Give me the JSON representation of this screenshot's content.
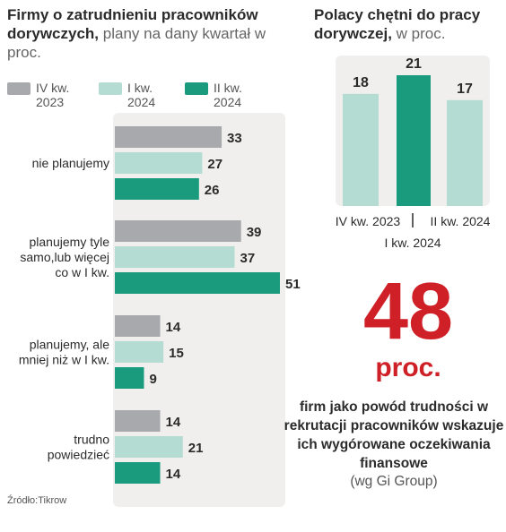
{
  "left_title": {
    "bold": "Firmy o zatrudnieniu pracowników dorywczych,",
    "rest": " plany na dany kwartał w proc."
  },
  "right_title": {
    "bold": "Polacy chętni do pracy dorywczej,",
    "rest": " w proc."
  },
  "legend": [
    {
      "label": "IV kw.\n2023",
      "color": "#a7a9ac"
    },
    {
      "label": "I kw.\n2024",
      "color": "#b4dcd3"
    },
    {
      "label": "II kw.\n2024",
      "color": "#1a9b7d"
    }
  ],
  "chart_data": [
    {
      "type": "bar",
      "orientation": "horizontal",
      "categories": [
        "nie planujemy",
        "planujemy tyle samo,lub więcej co w I kw.",
        "planujemy, ale mniej niż w I kw.",
        "trudno powiedzieć"
      ],
      "category_lines": [
        [
          "nie planujemy"
        ],
        [
          "planujemy tyle",
          "samo,lub więcej",
          "co w I kw."
        ],
        [
          "planujemy, ale",
          "mniej niż w I kw."
        ],
        [
          "trudno",
          "powiedzieć"
        ]
      ],
      "series": [
        {
          "name": "IV kw. 2023",
          "color": "#a7a9ac",
          "values": [
            33,
            39,
            14,
            14
          ]
        },
        {
          "name": "I kw. 2024",
          "color": "#b4dcd3",
          "values": [
            27,
            37,
            15,
            21
          ]
        },
        {
          "name": "II kw. 2024",
          "color": "#1a9b7d",
          "values": [
            26,
            51,
            9,
            14
          ]
        }
      ],
      "xlim": [
        0,
        51
      ]
    },
    {
      "type": "bar",
      "categories": [
        "IV kw. 2023",
        "I kw. 2024",
        "II kw. 2024"
      ],
      "values": [
        18,
        21,
        17
      ],
      "colors": [
        "#b4dcd3",
        "#1a9b7d",
        "#b4dcd3"
      ],
      "ylim": [
        0,
        21
      ]
    }
  ],
  "highlight": {
    "value": "48",
    "unit": "proc.",
    "description": "firm jako powód trudności w rekrutacji pracowników wskazuje ich wygórowane oczekiwania finansowe",
    "source": "(wg Gi Group)"
  },
  "source_note": "Źródło:Tikrow"
}
